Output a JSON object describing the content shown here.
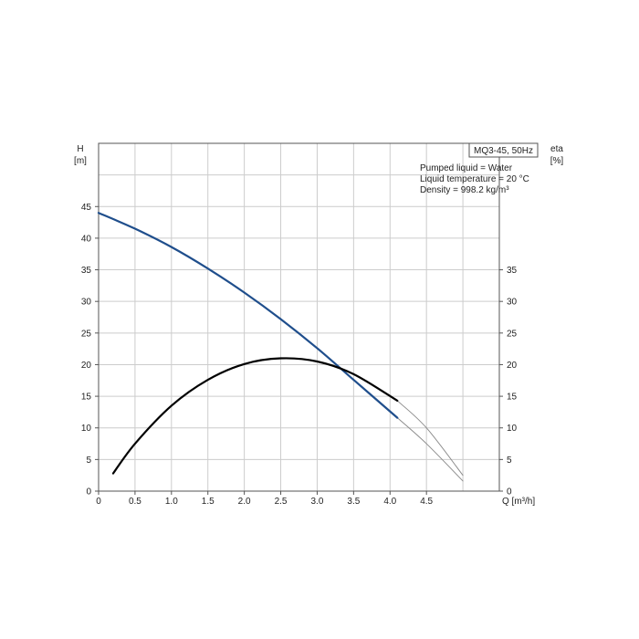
{
  "chart_data": {
    "type": "line",
    "title": "MQ3-45, 50Hz",
    "info_lines": [
      "Pumped liquid = Water",
      "Liquid temperature = 20 °C",
      "Density = 998.2 kg/m³"
    ],
    "left_axis": {
      "label_top": "H",
      "label_unit": "[m]",
      "range": [
        0,
        55
      ],
      "ticks": [
        "0",
        "5",
        "10",
        "15",
        "20",
        "25",
        "30",
        "35",
        "40",
        "45"
      ]
    },
    "right_axis": {
      "label_top": "eta",
      "label_unit": "[%]",
      "range": [
        0,
        55
      ],
      "ticks": [
        "0",
        "5",
        "10",
        "15",
        "20",
        "25",
        "30",
        "35"
      ]
    },
    "x_axis": {
      "label": "Q [m³/h]",
      "range": [
        0,
        5.5
      ],
      "ticks": [
        "0",
        "0.5",
        "1.0",
        "1.5",
        "2.0",
        "2.5",
        "3.0",
        "3.5",
        "4.0",
        "4.5"
      ]
    },
    "grid": true,
    "colors": {
      "head": "#1f4e8c",
      "efficiency": "#000000",
      "extension": "#888888",
      "grid": "#cccccc"
    },
    "series": [
      {
        "name": "H",
        "axis": "left",
        "style": "solid",
        "color": "#1f4e8c",
        "x": [
          0.0,
          0.5,
          1.0,
          1.5,
          2.0,
          2.5,
          3.0,
          3.5,
          4.1
        ],
        "y": [
          44.0,
          41.5,
          38.6,
          35.2,
          31.4,
          27.2,
          22.6,
          17.6,
          11.6
        ]
      },
      {
        "name": "eta",
        "axis": "right",
        "style": "solid",
        "color": "#000000",
        "x": [
          0.2,
          0.5,
          1.0,
          1.5,
          2.0,
          2.5,
          3.0,
          3.5,
          4.1
        ],
        "y": [
          2.8,
          7.5,
          13.5,
          17.6,
          20.1,
          21.0,
          20.5,
          18.5,
          14.3
        ]
      },
      {
        "name": "eta-extension",
        "axis": "right",
        "style": "thin",
        "color": "#888888",
        "x": [
          4.1,
          4.5,
          5.0
        ],
        "y": [
          14.3,
          10.0,
          2.5
        ]
      },
      {
        "name": "H-extension",
        "axis": "left",
        "style": "thin",
        "color": "#888888",
        "x": [
          4.1,
          4.5,
          5.0
        ],
        "y": [
          11.6,
          7.5,
          1.6
        ]
      }
    ]
  }
}
